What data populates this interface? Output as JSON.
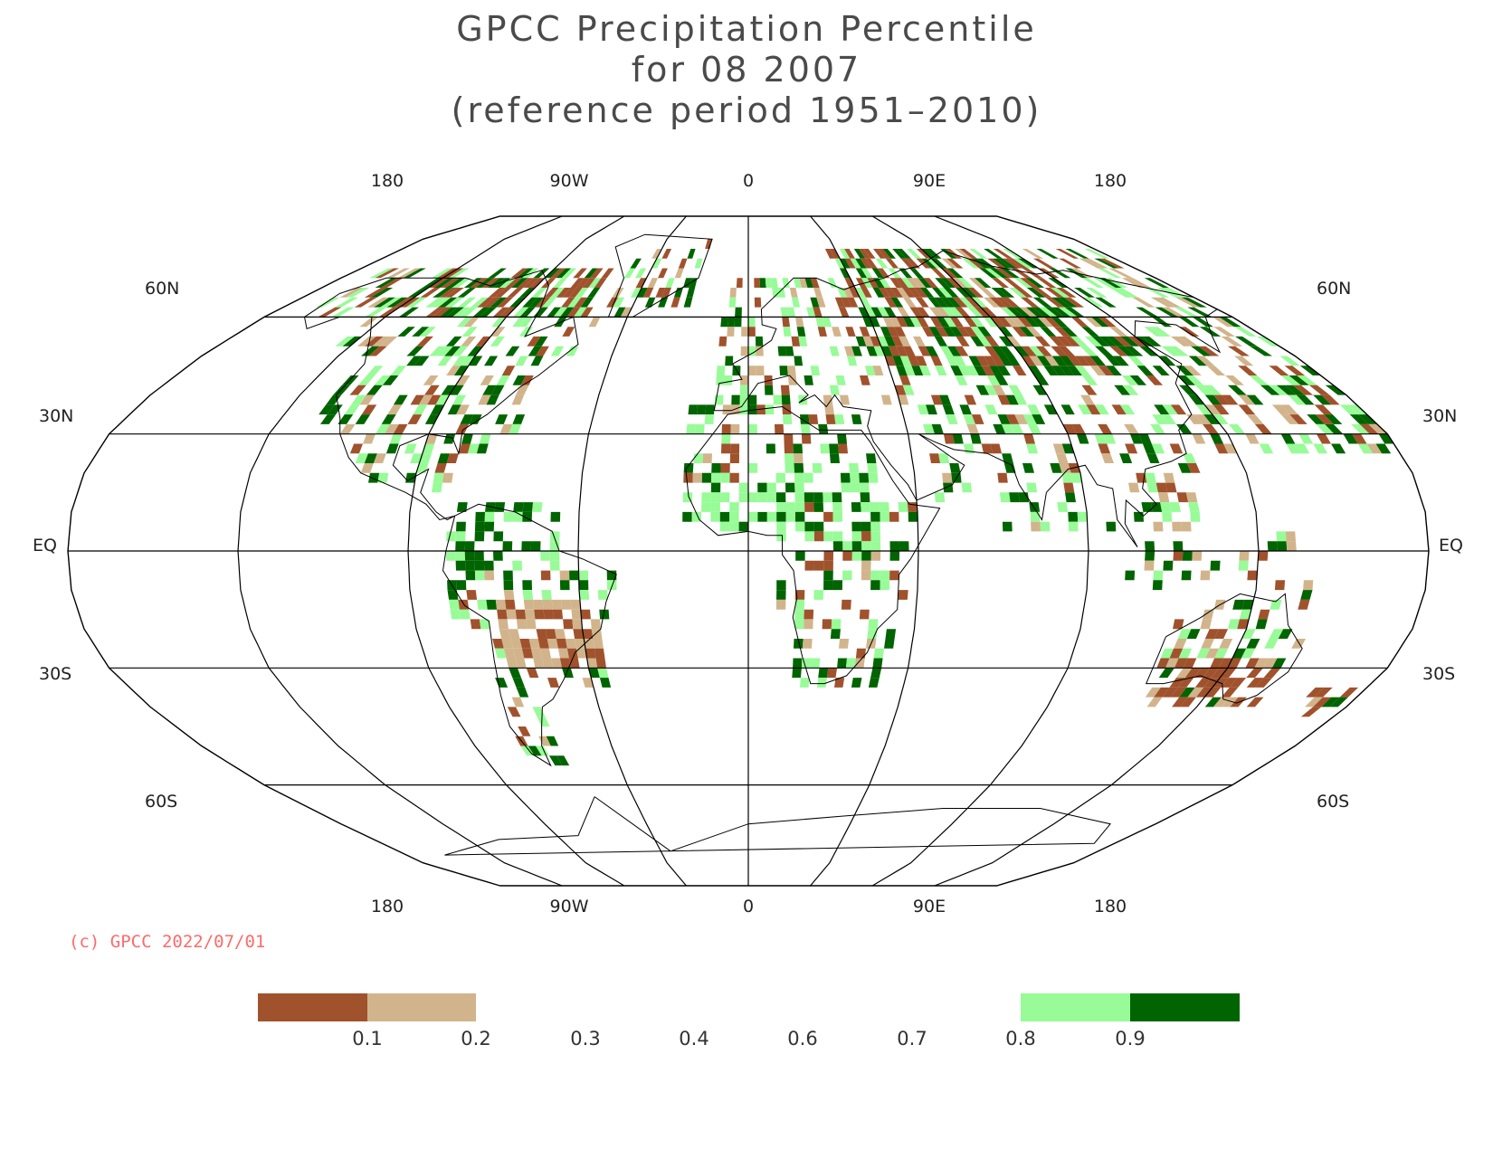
{
  "title": {
    "line1": "GPCC Precipitation Percentile",
    "line2": "for 08 2007",
    "line3": "(reference period 1951–2010)"
  },
  "map": {
    "projection": "Robinson",
    "longitude_labels": [
      "180",
      "90W",
      "0",
      "90E",
      "180"
    ],
    "latitude_labels": [
      "60N",
      "30N",
      "EQ",
      "30S",
      "60S"
    ]
  },
  "copyright": "(c) GPCC 2022/07/01",
  "legend": {
    "tick_labels": [
      "0.1",
      "0.2",
      "0.3",
      "0.4",
      "0.6",
      "0.7",
      "0.8",
      "0.9"
    ],
    "classes": [
      {
        "range": "< 0.1",
        "color": "#a0522d"
      },
      {
        "range": "0.1 – 0.2",
        "color": "#d2b48c"
      },
      {
        "range": "0.2 – 0.8",
        "color": "#ffffff"
      },
      {
        "range": "0.8 – 0.9",
        "color": "#98fb98"
      },
      {
        "range": "> 0.9",
        "color": "#006400"
      }
    ]
  },
  "colors": {
    "very_dry": "#a0522d",
    "dry": "#d2b48c",
    "wet": "#98fb98",
    "very_wet": "#006400",
    "grid": "#000000",
    "copyright": "#ff6a6a"
  }
}
